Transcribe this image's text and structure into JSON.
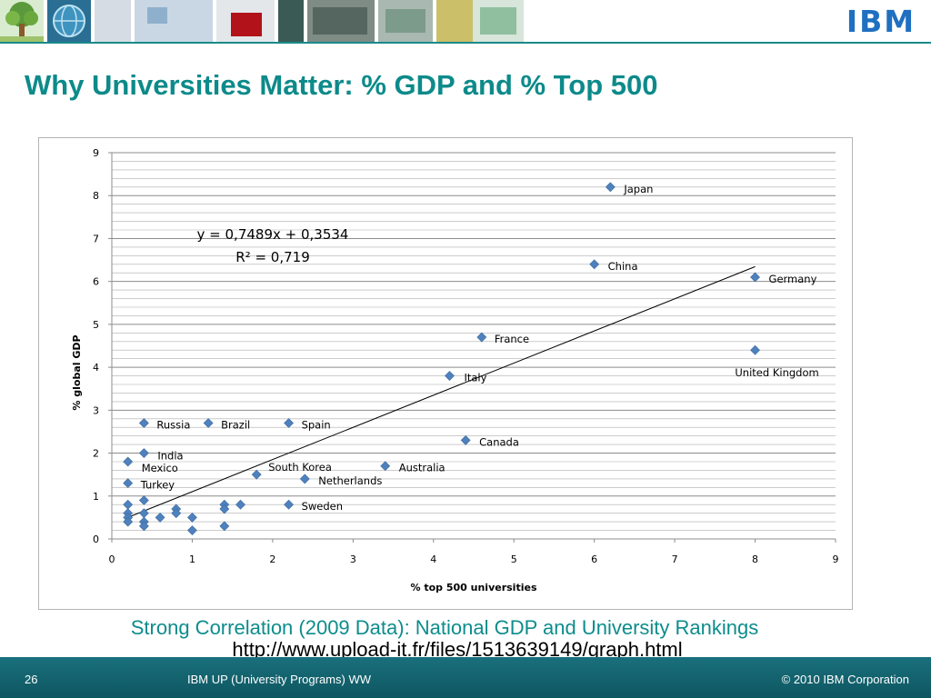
{
  "slide": {
    "title": "Why Universities Matter: % GDP and % Top 500",
    "caption": "Strong Correlation (2009 Data): National GDP and University Rankings",
    "url": "http://www.upload-it.fr/files/1513639149/graph.html"
  },
  "brand": {
    "logo_text": "IBM",
    "color": "#1f70c1"
  },
  "footer": {
    "page_number": "26",
    "center": "IBM UP (University Programs) WW",
    "copyright": "© 2010 IBM Corporation"
  },
  "colors": {
    "title": "#0d8a8a",
    "marker": "#4f81bd",
    "trendline": "#000000",
    "gridline": "#8c8c8c",
    "footer_bg": "#13616d"
  },
  "banner_images": [
    "tree-illustration-icon",
    "globe-icon",
    "photo-strip"
  ],
  "chart_data": {
    "type": "scatter",
    "xlabel": "% top 500 universities",
    "ylabel": "% global GDP",
    "xlim": [
      0,
      9
    ],
    "ylim": [
      0,
      9
    ],
    "xticks": [
      0,
      1,
      2,
      3,
      4,
      5,
      6,
      7,
      8,
      9
    ],
    "yticks": [
      0,
      1,
      2,
      3,
      4,
      5,
      6,
      7,
      8,
      9
    ],
    "grid": "horizontal",
    "trendline": {
      "slope": 0.7489,
      "intercept": 0.3534,
      "x_range": [
        0.2,
        8.0
      ],
      "equation": "y = 0,7489x + 0,3534",
      "r_squared": "R² = 0,719"
    },
    "points": [
      {
        "x": 6.2,
        "y": 8.2,
        "label": "Japan"
      },
      {
        "x": 6.0,
        "y": 6.4,
        "label": "China"
      },
      {
        "x": 8.0,
        "y": 6.1,
        "label": "Germany"
      },
      {
        "x": 4.6,
        "y": 4.7,
        "label": "France"
      },
      {
        "x": 8.0,
        "y": 4.4,
        "label": "United Kingdom"
      },
      {
        "x": 4.2,
        "y": 3.8,
        "label": "Italy"
      },
      {
        "x": 0.4,
        "y": 2.7,
        "label": "Russia"
      },
      {
        "x": 1.2,
        "y": 2.7,
        "label": "Brazil"
      },
      {
        "x": 2.2,
        "y": 2.7,
        "label": "Spain"
      },
      {
        "x": 4.4,
        "y": 2.3,
        "label": "Canada"
      },
      {
        "x": 0.4,
        "y": 2.0,
        "label": "India"
      },
      {
        "x": 0.2,
        "y": 1.8,
        "label": "Mexico"
      },
      {
        "x": 1.8,
        "y": 1.5,
        "label": "South Korea"
      },
      {
        "x": 3.4,
        "y": 1.7,
        "label": "Australia"
      },
      {
        "x": 2.4,
        "y": 1.4,
        "label": "Netherlands"
      },
      {
        "x": 0.2,
        "y": 1.3,
        "label": "Turkey"
      },
      {
        "x": 2.2,
        "y": 0.8,
        "label": "Sweden"
      },
      {
        "x": 0.4,
        "y": 0.9
      },
      {
        "x": 0.2,
        "y": 0.8
      },
      {
        "x": 0.2,
        "y": 0.6
      },
      {
        "x": 0.2,
        "y": 0.5
      },
      {
        "x": 0.2,
        "y": 0.4
      },
      {
        "x": 0.4,
        "y": 0.6
      },
      {
        "x": 0.4,
        "y": 0.4
      },
      {
        "x": 0.4,
        "y": 0.3
      },
      {
        "x": 0.6,
        "y": 0.5
      },
      {
        "x": 0.8,
        "y": 0.7
      },
      {
        "x": 0.8,
        "y": 0.6
      },
      {
        "x": 1.0,
        "y": 0.5
      },
      {
        "x": 1.0,
        "y": 0.2
      },
      {
        "x": 1.4,
        "y": 0.8
      },
      {
        "x": 1.4,
        "y": 0.7
      },
      {
        "x": 1.4,
        "y": 0.3
      },
      {
        "x": 1.6,
        "y": 0.8
      }
    ]
  }
}
